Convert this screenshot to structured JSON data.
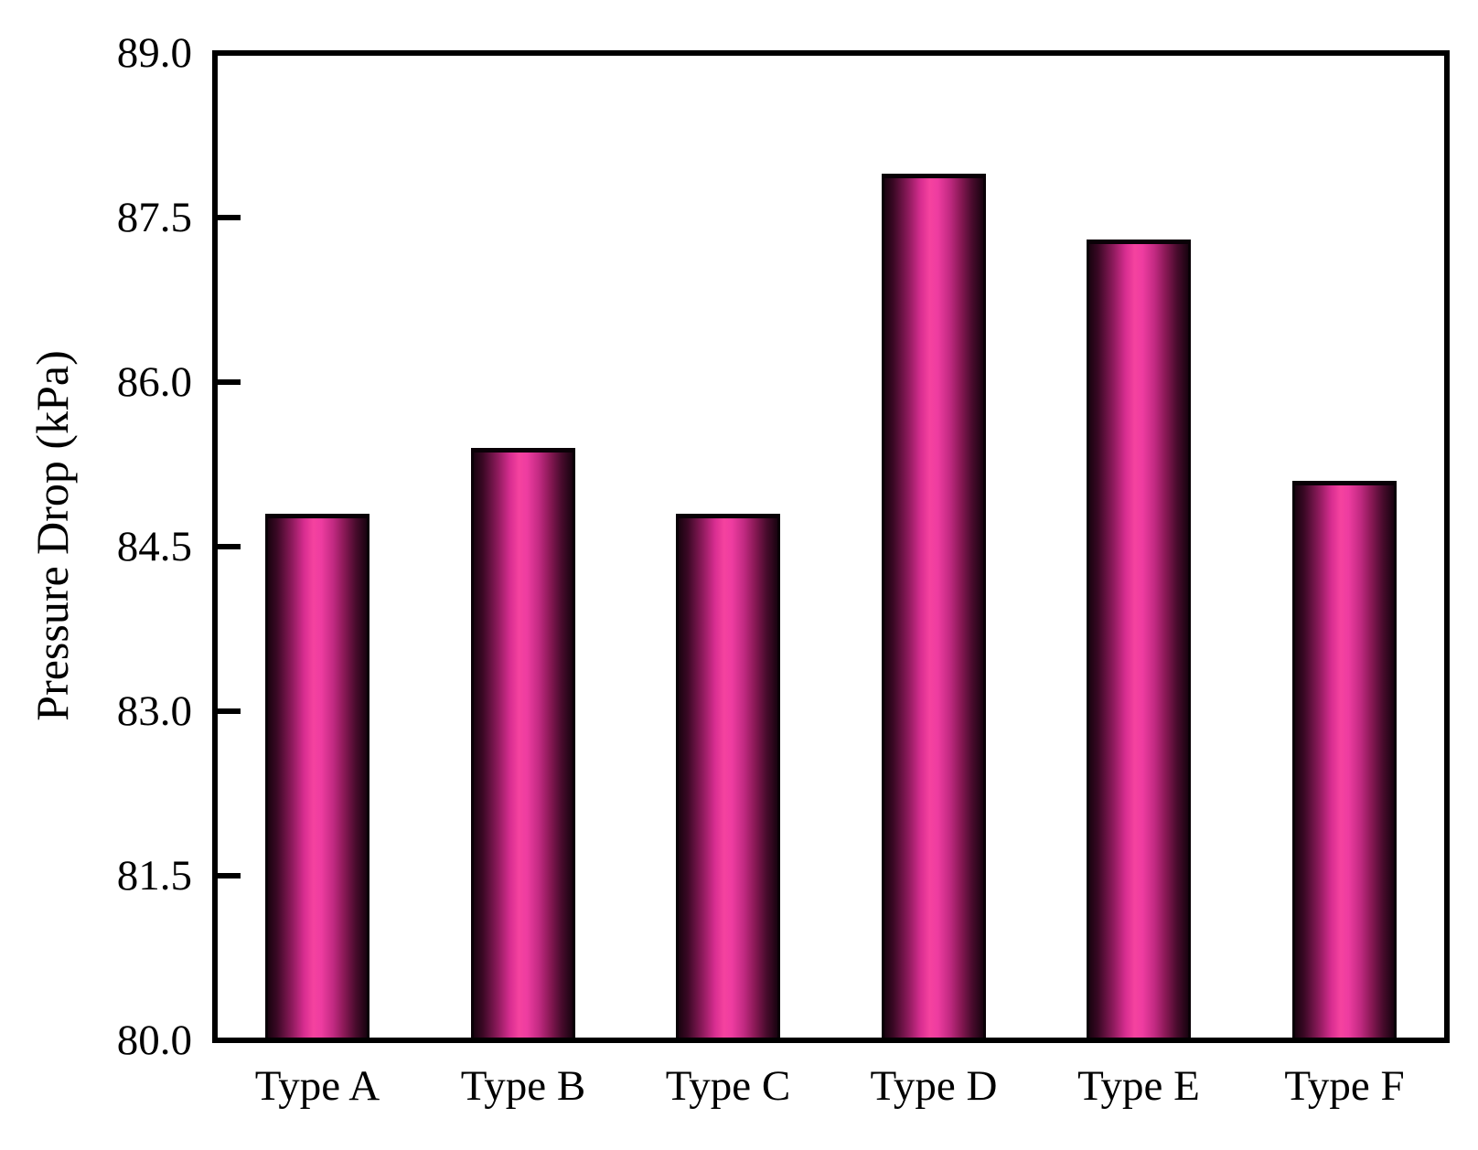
{
  "figure": {
    "background_color": "#ffffff",
    "frame_color": "#000000"
  },
  "chart_data": {
    "type": "bar",
    "title": "",
    "xlabel": "",
    "ylabel": "Pressure Drop (kPa)",
    "categories": [
      "Type A",
      "Type B",
      "Type C",
      "Type D",
      "Type E",
      "Type F"
    ],
    "values": [
      84.8,
      85.4,
      84.8,
      87.9,
      87.3,
      85.1
    ],
    "ylim": [
      80.0,
      89.0
    ],
    "yticks": [
      80.0,
      81.5,
      83.0,
      84.5,
      86.0,
      87.5,
      89.0
    ],
    "ytick_labels": [
      "80.0",
      "81.5",
      "83.0",
      "84.5",
      "86.0",
      "87.5",
      "89.0"
    ],
    "grid": false,
    "legend": false,
    "bar_colors": {
      "center": "#f5429f",
      "edge": "#190310",
      "outline": "#0a0107"
    }
  }
}
